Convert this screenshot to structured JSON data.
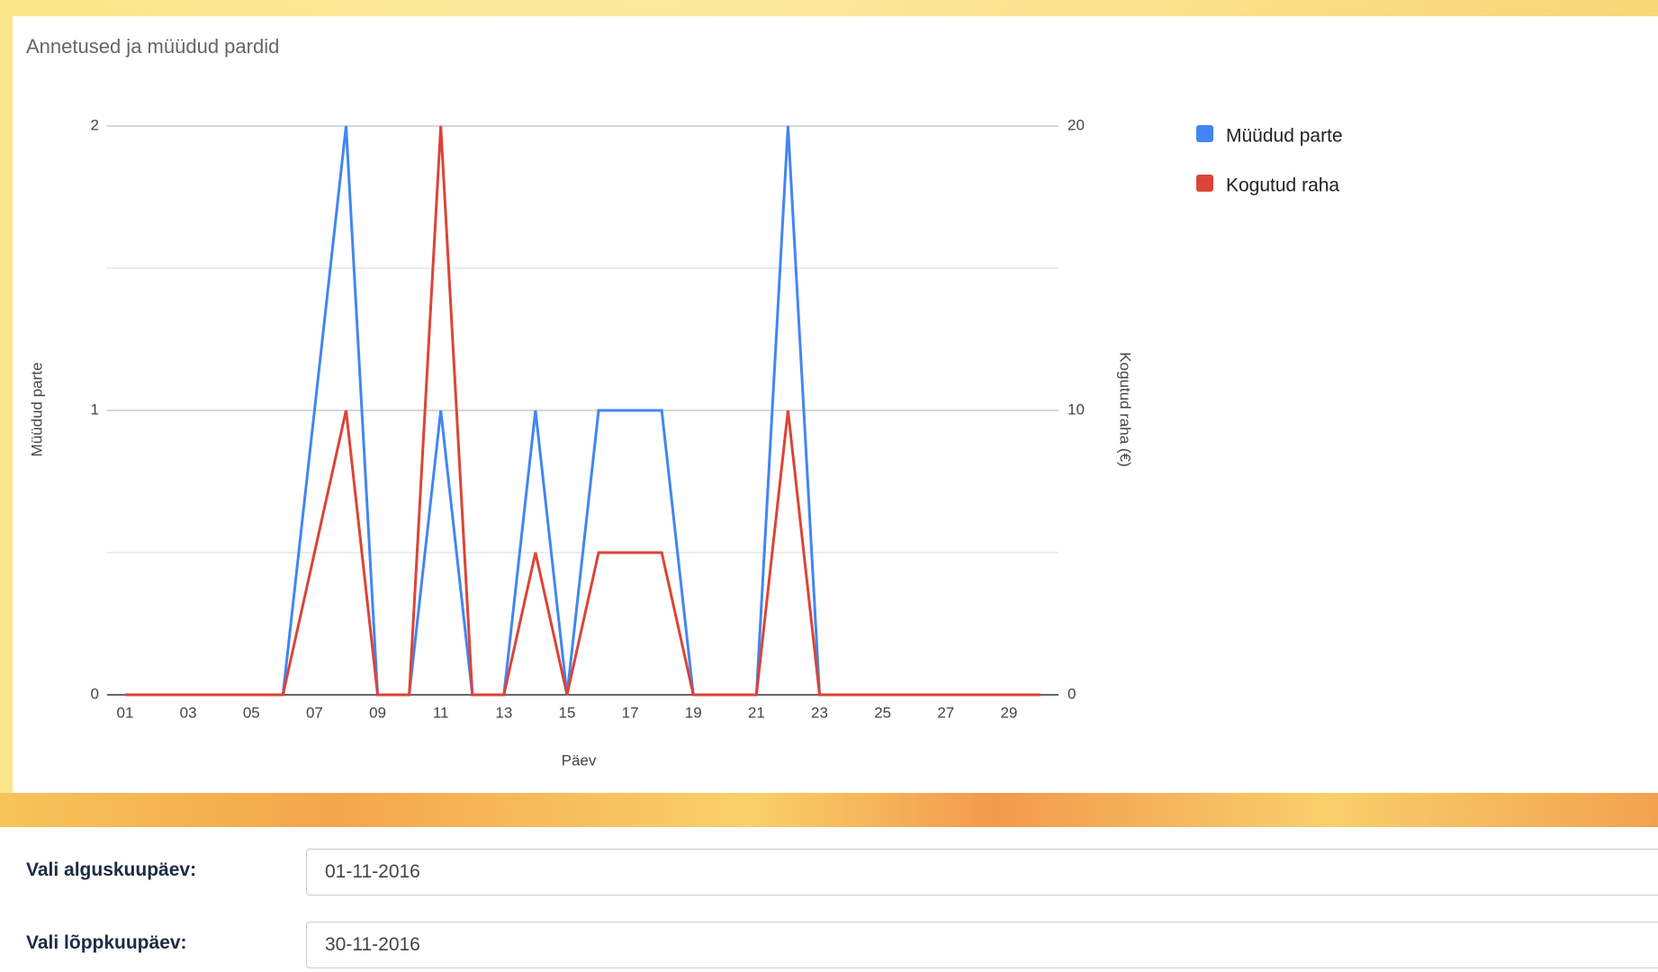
{
  "chart_data": {
    "type": "line",
    "title": "Annetused ja müüdud pardid",
    "xlabel": "Päev",
    "ylabel": "Müüdud parte",
    "y2label": "Kogutud raha (€)",
    "categories": [
      "01",
      null,
      "03",
      null,
      "05",
      null,
      "07",
      null,
      "09",
      null,
      "11",
      null,
      "13",
      null,
      "15",
      null,
      "17",
      null,
      "19",
      null,
      "21",
      null,
      "23",
      null,
      "25",
      null,
      "27",
      null,
      "29",
      null
    ],
    "series": [
      {
        "name": "Müüdud parte",
        "color": "#4285f4",
        "values": [
          0,
          0,
          0,
          0,
          0,
          0,
          1,
          2,
          0,
          0,
          1,
          0,
          0,
          1,
          0,
          1,
          1,
          1,
          0,
          0,
          0,
          2,
          0,
          0,
          0,
          0,
          0,
          0,
          0,
          0
        ]
      },
      {
        "name": "Kogutud raha",
        "color": "#db4437",
        "axis": "y2",
        "values": [
          0,
          0,
          0,
          0,
          0,
          0,
          5,
          10,
          0,
          0,
          20,
          0,
          0,
          5,
          0,
          5,
          5,
          5,
          0,
          0,
          0,
          10,
          0,
          0,
          0,
          0,
          0,
          0,
          0,
          0
        ]
      }
    ],
    "ylim": [
      0,
      2
    ],
    "yticks": [
      0,
      1,
      2
    ],
    "yminorticks": [
      0.5,
      1.5
    ],
    "y2lim": [
      0,
      20
    ],
    "y2ticks": [
      0,
      10,
      20
    ],
    "grid": true,
    "legend": "right"
  },
  "form": {
    "fields": [
      {
        "label": "Vali alguskuupäev:",
        "value": "01-11-2016"
      },
      {
        "label": "Vali lõppkuupäev:",
        "value": "30-11-2016"
      }
    ]
  }
}
